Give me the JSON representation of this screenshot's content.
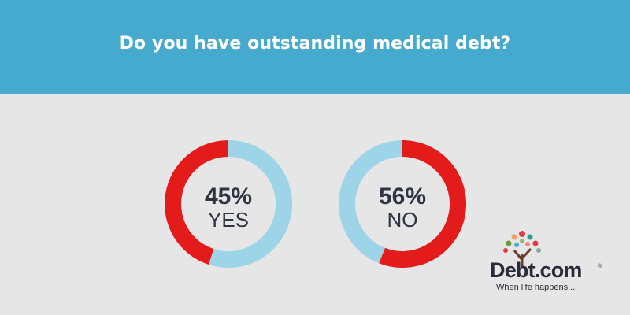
{
  "title": "Do you have outstanding medical debt?",
  "colors": {
    "header_bg": "#45aacd",
    "page_bg": "#e6e6e6",
    "red": "#e31b1b",
    "light_blue": "#9ed4e8",
    "text_dark": "#2f3542"
  },
  "chart_data": [
    {
      "type": "pie",
      "variant": "donut",
      "label": "YES",
      "value_label": "45%",
      "slices": [
        {
          "name": "YES",
          "value": 45,
          "color": "#e31b1b"
        },
        {
          "name": "other",
          "value": 55,
          "color": "#9ed4e8"
        }
      ]
    },
    {
      "type": "pie",
      "variant": "donut",
      "label": "NO",
      "value_label": "56%",
      "slices": [
        {
          "name": "NO",
          "value": 56,
          "color": "#e31b1b"
        },
        {
          "name": "other",
          "value": 44,
          "color": "#9ed4e8"
        }
      ]
    }
  ],
  "logo": {
    "brand": "Debt.com",
    "registered": "®",
    "tagline": "When life happens..."
  }
}
